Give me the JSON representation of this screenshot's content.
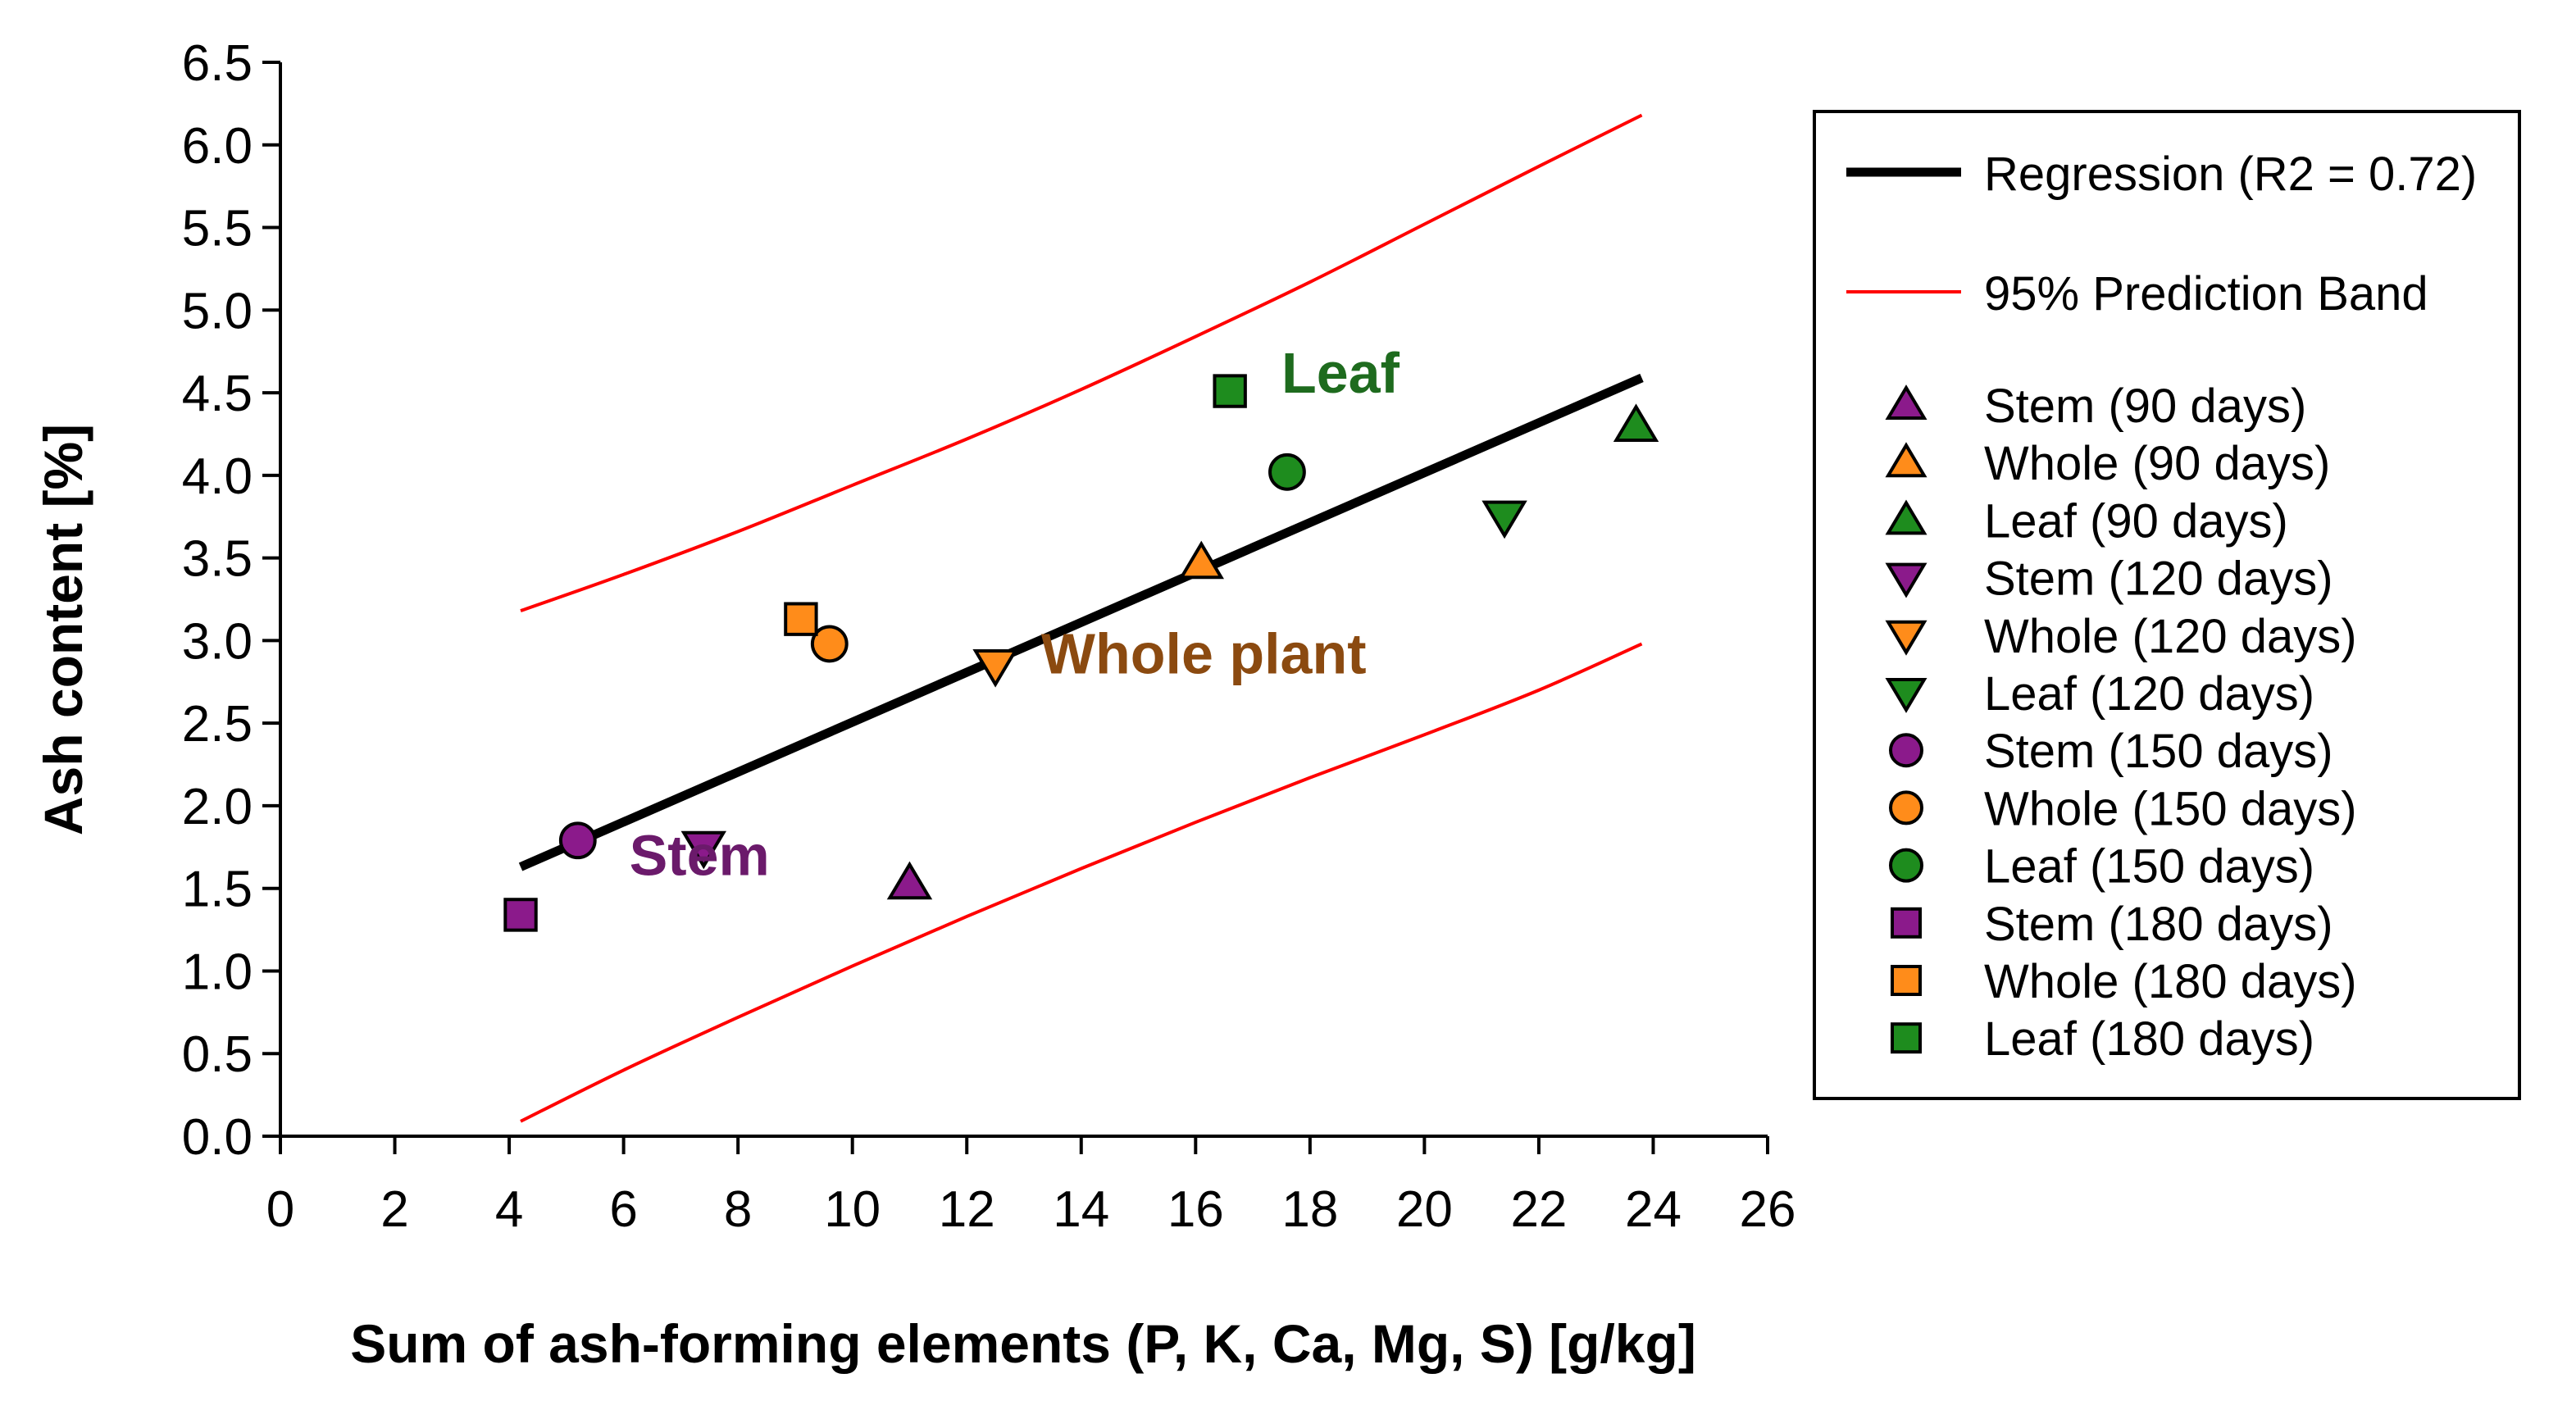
{
  "chart_data": {
    "type": "scatter",
    "xlabel": "Sum of ash-forming elements (P, K, Ca, Mg, S) [g/kg]",
    "ylabel": "Ash content [%]",
    "xlim": [
      0,
      26
    ],
    "ylim": [
      0,
      6.5
    ],
    "x_ticks": [
      "0",
      "2",
      "4",
      "6",
      "8",
      "10",
      "12",
      "14",
      "16",
      "18",
      "20",
      "22",
      "24",
      "26"
    ],
    "y_ticks": [
      "0.0",
      "0.5",
      "1.0",
      "1.5",
      "2.0",
      "2.5",
      "3.0",
      "3.5",
      "4.0",
      "4.5",
      "5.0",
      "5.5",
      "6.0",
      "6.5"
    ],
    "grid": false,
    "legend_position": "right",
    "colors": {
      "stem": "#8B1A8B",
      "whole": "#FF8C1A",
      "leaf": "#1E8C1E",
      "regression": "#000000",
      "band": "#FF0000"
    },
    "regression": {
      "name": "Regression (R2 = 0.72)",
      "x": [
        4.2,
        23.8
      ],
      "y": [
        1.63,
        4.59
      ]
    },
    "prediction_band": {
      "name": "95% Prediction Band",
      "upper": {
        "x": [
          4.2,
          6,
          8,
          10,
          12,
          14,
          16,
          18,
          20,
          22,
          23.8
        ],
        "y": [
          3.18,
          3.4,
          3.66,
          3.94,
          4.22,
          4.52,
          4.84,
          5.17,
          5.52,
          5.87,
          6.18
        ]
      },
      "lower": {
        "x": [
          4.2,
          6,
          8,
          10,
          12,
          14,
          16,
          18,
          20,
          22,
          23.8
        ],
        "y": [
          0.09,
          0.4,
          0.72,
          1.03,
          1.33,
          1.62,
          1.9,
          2.17,
          2.43,
          2.7,
          2.98
        ]
      }
    },
    "series": [
      {
        "name": "Stem (90 days)",
        "marker": "triangle-up",
        "color": "#8B1A8B",
        "points": [
          [
            11.0,
            1.53
          ]
        ]
      },
      {
        "name": "Whole (90 days)",
        "marker": "triangle-up",
        "color": "#FF8C1A",
        "points": [
          [
            16.1,
            3.47
          ]
        ]
      },
      {
        "name": "Leaf (90 days)",
        "marker": "triangle-up",
        "color": "#1E8C1E",
        "points": [
          [
            23.7,
            4.3
          ]
        ]
      },
      {
        "name": "Stem (120 days)",
        "marker": "triangle-down",
        "color": "#8B1A8B",
        "points": [
          [
            7.4,
            1.75
          ]
        ]
      },
      {
        "name": "Whole (120 days)",
        "marker": "triangle-down",
        "color": "#FF8C1A",
        "points": [
          [
            12.5,
            2.85
          ]
        ]
      },
      {
        "name": "Leaf (120 days)",
        "marker": "triangle-down",
        "color": "#1E8C1E",
        "points": [
          [
            21.4,
            3.75
          ]
        ]
      },
      {
        "name": "Stem (150 days)",
        "marker": "circle",
        "color": "#8B1A8B",
        "points": [
          [
            5.2,
            1.79
          ]
        ]
      },
      {
        "name": "Whole (150 days)",
        "marker": "circle",
        "color": "#FF8C1A",
        "points": [
          [
            9.6,
            2.98
          ]
        ]
      },
      {
        "name": "Leaf (150 days)",
        "marker": "circle",
        "color": "#1E8C1E",
        "points": [
          [
            17.6,
            4.02
          ]
        ]
      },
      {
        "name": "Stem (180 days)",
        "marker": "square",
        "color": "#8B1A8B",
        "points": [
          [
            4.2,
            1.34
          ]
        ]
      },
      {
        "name": "Whole (180 days)",
        "marker": "square",
        "color": "#FF8C1A",
        "points": [
          [
            9.1,
            3.13
          ]
        ]
      },
      {
        "name": "Leaf (180 days)",
        "marker": "square",
        "color": "#1E8C1E",
        "points": [
          [
            16.6,
            4.51
          ]
        ]
      }
    ],
    "annotations": [
      {
        "text": "Leaf",
        "x": 17.5,
        "y": 4.5,
        "color": "#1E6B1E"
      },
      {
        "text": "Whole plant",
        "x": 13.3,
        "y": 2.8,
        "color": "#8B4A10"
      },
      {
        "text": "Stem",
        "x": 6.1,
        "y": 1.58,
        "color": "#6B1A6B"
      }
    ]
  }
}
